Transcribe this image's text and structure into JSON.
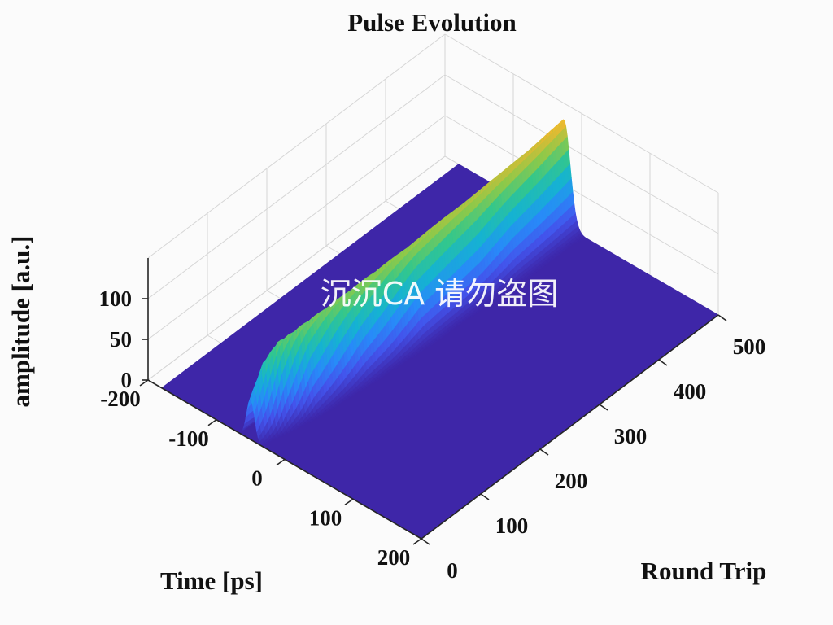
{
  "chart_data": {
    "type": "surface",
    "title": "Pulse Evolution",
    "xlabel": "Time [ps]",
    "ylabel": "Round Trip",
    "zlabel": "amplitude [a.u.]",
    "xlim": [
      -200,
      200
    ],
    "ylim": [
      0,
      500
    ],
    "zlim": [
      0,
      150
    ],
    "x_ticks": [
      "-200",
      "-100",
      "0",
      "100",
      "200"
    ],
    "y_ticks": [
      "0",
      "100",
      "200",
      "300",
      "400",
      "500"
    ],
    "z_ticks": [
      "0",
      "50",
      "100"
    ],
    "colormap": "parula",
    "grid": true,
    "ridge": {
      "round_trip": [
        0,
        20,
        40,
        60,
        80,
        120,
        160,
        200,
        250,
        300,
        350,
        400,
        450,
        500
      ],
      "center_time_ps": [
        -50,
        -48,
        -45,
        -42,
        -40,
        -37,
        -35,
        -33,
        -31,
        -30,
        -29,
        -28,
        -27,
        -26
      ],
      "peak_amplitude": [
        50,
        85,
        100,
        102,
        104,
        106,
        108,
        110,
        112,
        115,
        117,
        120,
        124,
        130
      ],
      "width_ps": [
        8,
        8,
        9,
        9,
        10,
        10,
        11,
        11,
        12,
        12,
        12,
        13,
        13,
        13
      ]
    },
    "watermark": "沉沉CA 请勿盗图"
  }
}
